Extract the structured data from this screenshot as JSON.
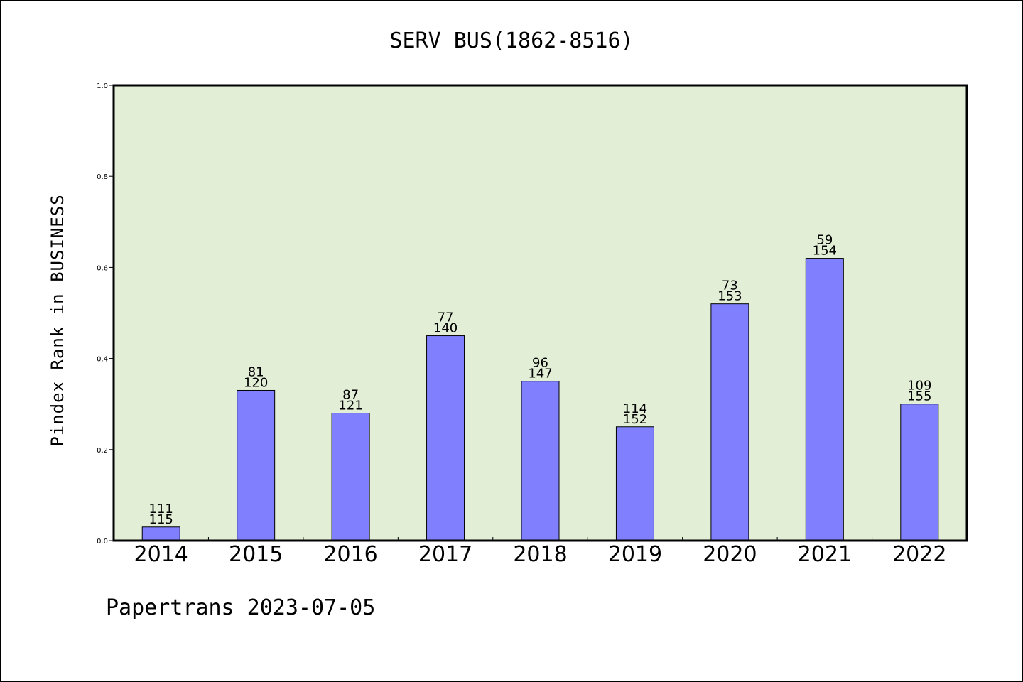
{
  "chart_data": {
    "type": "bar",
    "title": "SERV BUS(1862-8516)",
    "xlabel": "",
    "ylabel": "Pindex Rank in BUSINESS",
    "ylim": [
      0,
      1.0
    ],
    "yticks": [
      "0.0",
      "0.2",
      "0.4",
      "0.6",
      "0.8",
      "1.0"
    ],
    "grid": false,
    "categories": [
      "2014",
      "2015",
      "2016",
      "2017",
      "2018",
      "2019",
      "2020",
      "2021",
      "2022"
    ],
    "values": [
      0.03,
      0.33,
      0.28,
      0.45,
      0.35,
      0.25,
      0.52,
      0.62,
      0.3
    ],
    "labels_top": [
      "111",
      "81",
      "87",
      "77",
      "96",
      "114",
      "73",
      "59",
      "109"
    ],
    "labels_bottom": [
      "115",
      "120",
      "121",
      "140",
      "147",
      "152",
      "153",
      "154",
      "155"
    ],
    "colors": {
      "bar": "#8080ff",
      "plot_bg": "#e2efd6",
      "bar_edge": "#000000"
    }
  },
  "footer": {
    "text": "Papertrans 2023-07-05"
  }
}
